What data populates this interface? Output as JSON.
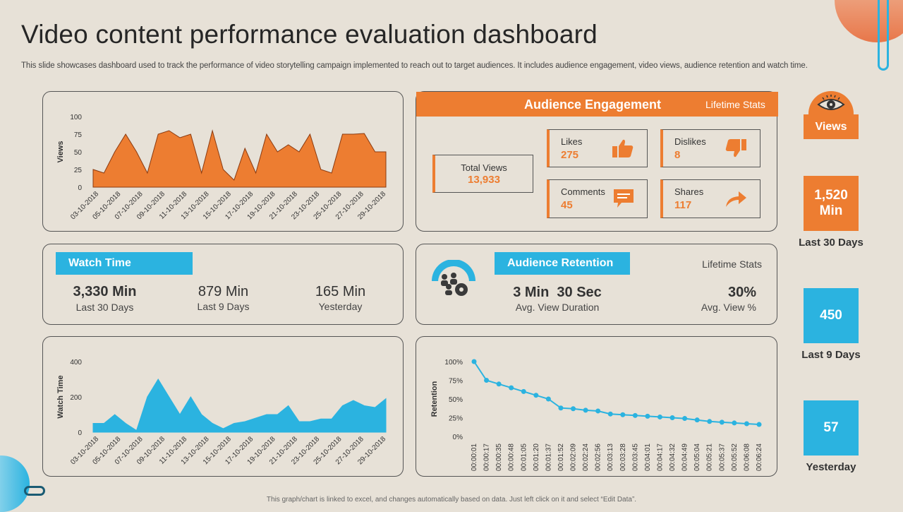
{
  "header": {
    "title": "Video content performance evaluation dashboard",
    "subtitle": "This slide showcases dashboard used to track the performance of video storytelling campaign implemented to reach out to target audiences. It includes audience engagement, video views, audience retention and watch time."
  },
  "footer": "This graph/chart is linked to excel, and changes automatically based on data. Just left click on it and select “Edit Data”.",
  "colors": {
    "orange": "#ed7d31",
    "blue": "#2bb3e0",
    "background": "#e7e1d7"
  },
  "chart_data": [
    {
      "type": "area",
      "title": "Views",
      "ylabel": "Views",
      "ylim": [
        0,
        100
      ],
      "yticks": [
        0,
        25,
        50,
        75,
        100
      ],
      "x_tick_labels": [
        "03-10-2018",
        "05-10-2018",
        "07-10-2018",
        "09-10-2018",
        "11-10-2018",
        "13-10-2018",
        "15-10-2018",
        "17-10-2018",
        "19-10-2018",
        "21-10-2018",
        "23-10-2018",
        "25-10-2018",
        "27-10-2018",
        "29-10-2018"
      ],
      "values": [
        25,
        20,
        50,
        75,
        50,
        20,
        75,
        80,
        70,
        75,
        20,
        80,
        25,
        10,
        55,
        20,
        75,
        50,
        60,
        50,
        75,
        25,
        20,
        75,
        75,
        76,
        50,
        50
      ],
      "color": "#ed7d31"
    },
    {
      "type": "area",
      "title": "Watch Time",
      "ylabel": "Watch Time",
      "ylim": [
        0,
        400
      ],
      "yticks": [
        0,
        200,
        400
      ],
      "x_tick_labels": [
        "03-10-2018",
        "05-10-2018",
        "07-10-2018",
        "09-10-2018",
        "11-10-2018",
        "13-10-2018",
        "15-10-2018",
        "17-10-2018",
        "19-10-2018",
        "21-10-2018",
        "23-10-2018",
        "25-10-2018",
        "27-10-2018",
        "29-10-2018"
      ],
      "values": [
        50,
        50,
        100,
        50,
        10,
        200,
        300,
        200,
        100,
        200,
        100,
        50,
        20,
        50,
        60,
        80,
        100,
        100,
        150,
        60,
        60,
        75,
        75,
        150,
        180,
        150,
        140,
        190
      ],
      "color": "#2bb3e0"
    },
    {
      "type": "line",
      "title": "Retention",
      "ylabel": "Retention",
      "ylim": [
        0,
        100
      ],
      "yticks": [
        "0%",
        "25%",
        "50%",
        "75%",
        "100%"
      ],
      "x": [
        "00:00:01",
        "00:00:17",
        "00:00:35",
        "00:00:48",
        "00:01:05",
        "00:01:20",
        "00:01:37",
        "00:01:52",
        "00:02:09",
        "00:02:24",
        "00:02:56",
        "00:03:13",
        "00:03:28",
        "00:03:45",
        "00:04:01",
        "00:04:17",
        "00:04:32",
        "00:04:49",
        "00:05:04",
        "00:05:21",
        "00:05:37",
        "00:05:52",
        "00:06:08",
        "00:06:24"
      ],
      "values": [
        100,
        75,
        70,
        65,
        60,
        55,
        50,
        38,
        37,
        35,
        34,
        30,
        29,
        28,
        27,
        26,
        25,
        24,
        22,
        20,
        19,
        18,
        17,
        16
      ],
      "color": "#2bb3e0"
    }
  ],
  "engagement": {
    "title": "Audience Engagement",
    "lifetime": "Lifetime Stats",
    "total_views": {
      "label": "Total Views",
      "value": "13,933"
    },
    "likes": {
      "label": "Likes",
      "value": "275",
      "icon": "thumbs-up-icon"
    },
    "dislikes": {
      "label": "Dislikes",
      "value": "8",
      "icon": "thumbs-down-icon"
    },
    "comments": {
      "label": "Comments",
      "value": "45",
      "icon": "comment-icon"
    },
    "shares": {
      "label": "Shares",
      "value": "117",
      "icon": "share-icon"
    }
  },
  "watch_time": {
    "title": "Watch Time",
    "items": [
      {
        "value": "3,330 Min",
        "label": "Last 30 Days"
      },
      {
        "value": "879 Min",
        "label": "Last 9 Days"
      },
      {
        "value": "165 Min",
        "label": "Yesterday"
      }
    ]
  },
  "retention": {
    "title": "Audience Retention",
    "lifetime": "Lifetime Stats",
    "duration": {
      "value": "3 Min  30 Sec",
      "label": "Avg. View Duration"
    },
    "percent": {
      "value": "30%",
      "label": "Avg. View %"
    },
    "icon": "audience-group-icon"
  },
  "sidebar": {
    "views_label": "Views",
    "eye_icon": "eye-icon",
    "minutes": {
      "value_line1": "1,520",
      "value_line2": "Min",
      "label": "Last 30 Days"
    },
    "nine_days": {
      "value": "450",
      "label": "Last 9 Days"
    },
    "yesterday": {
      "value": "57",
      "label": "Yesterday"
    }
  }
}
